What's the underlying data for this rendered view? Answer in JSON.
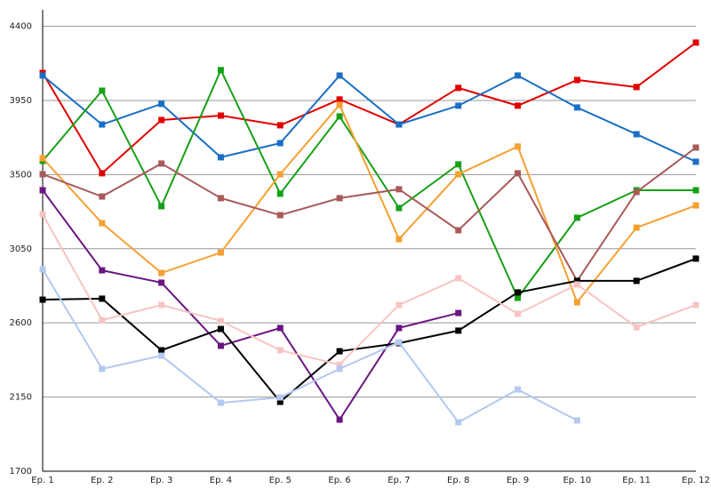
{
  "chart_data": {
    "type": "line",
    "categories": [
      "Ep. 1",
      "Ep. 2",
      "Ep. 3",
      "Ep. 4",
      "Ep. 5",
      "Ep. 6",
      "Ep. 7",
      "Ep. 8",
      "Ep. 9",
      "Ep. 10",
      "Ep. 11",
      "Ep. 12"
    ],
    "ylim": [
      1700,
      4500
    ],
    "yticks": [
      1700,
      2150,
      2600,
      3050,
      3500,
      3950,
      4400
    ],
    "grid": true,
    "series": [
      {
        "color": "#e00000",
        "values": [
          4117,
          3508,
          3831,
          3858,
          3799,
          3956,
          3804,
          4026,
          3918,
          4074,
          4031,
          4301
        ]
      },
      {
        "color": "#1a6fc4",
        "values": [
          4101,
          3804,
          3929,
          3605,
          3691,
          4101,
          3804,
          3918,
          4101,
          3907,
          3745,
          3578
        ]
      },
      {
        "color": "#16a016",
        "values": [
          3583,
          4009,
          3308,
          4134,
          3384,
          3853,
          3297,
          3562,
          2752,
          3238,
          3405,
          3405
        ]
      },
      {
        "color": "#f5a030",
        "values": [
          3599,
          3205,
          2903,
          3027,
          3502,
          3923,
          3108,
          3502,
          3670,
          2725,
          3178,
          3313
        ]
      },
      {
        "color": "#a85a5a",
        "values": [
          3502,
          3367,
          3567,
          3357,
          3254,
          3357,
          3411,
          3162,
          3508,
          2855,
          3394,
          3664
        ]
      },
      {
        "color": "#6a1580",
        "values": [
          3405,
          2919,
          2844,
          2461,
          2569,
          2013,
          2569,
          2660,
          null,
          null,
          null,
          null
        ]
      },
      {
        "color": "#000000",
        "values": [
          2741,
          2747,
          2434,
          2563,
          2121,
          2428,
          2477,
          2553,
          2785,
          2855,
          2855,
          2990
        ]
      },
      {
        "color": "#f7c4c4",
        "values": [
          3259,
          2617,
          2709,
          2612,
          2434,
          2347,
          2709,
          2871,
          2655,
          2833,
          2574,
          2709
        ]
      },
      {
        "color": "#b4c8f0",
        "values": [
          2925,
          2321,
          2401,
          2115,
          2148,
          2321,
          2482,
          1997,
          2196,
          2008,
          null,
          null
        ]
      }
    ]
  }
}
